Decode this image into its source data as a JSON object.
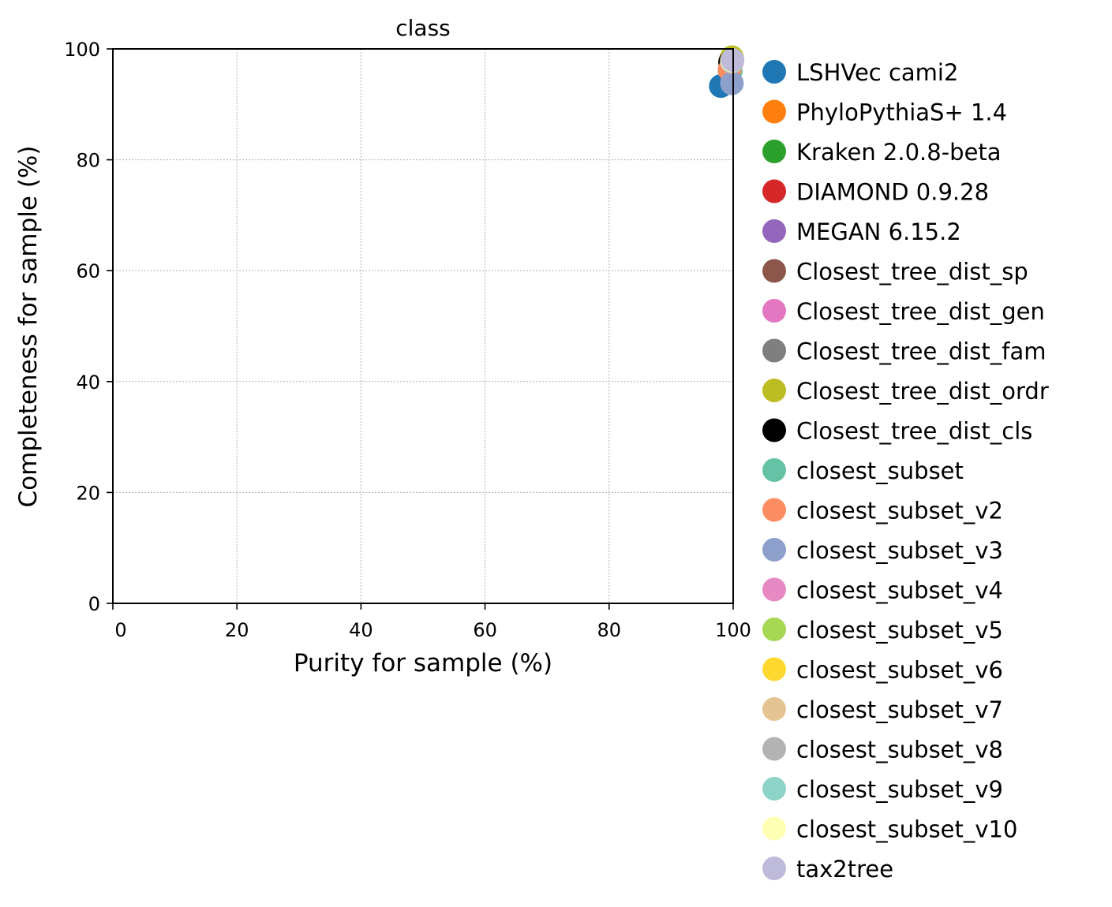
{
  "chart_data": {
    "type": "scatter",
    "title": "class",
    "xlabel": "Purity for sample (%)",
    "ylabel": "Completeness for sample (%)",
    "xlim": [
      0,
      100
    ],
    "ylim": [
      0,
      100
    ],
    "xticks": [
      "0",
      "20",
      "40",
      "60",
      "80",
      "100"
    ],
    "yticks": [
      "0",
      "20",
      "40",
      "60",
      "80",
      "100"
    ],
    "grid": true,
    "legend_position": "outside-right",
    "series": [
      {
        "name": "LSHVec cami2",
        "color": "#1f77b4",
        "x": 98.0,
        "y": 93.3
      },
      {
        "name": "PhyloPythiaS+ 1.4",
        "color": "#ff7f0e",
        "x": 99.6,
        "y": 98.0
      },
      {
        "name": "Kraken 2.0.8-beta",
        "color": "#2ca02c",
        "x": 99.8,
        "y": 98.4
      },
      {
        "name": "DIAMOND 0.9.28",
        "color": "#d62728",
        "x": 99.7,
        "y": 98.0
      },
      {
        "name": "MEGAN 6.15.2",
        "color": "#9467bd",
        "x": 99.8,
        "y": 97.8
      },
      {
        "name": "Closest_tree_dist_sp",
        "color": "#8c564b",
        "x": 99.8,
        "y": 98.2
      },
      {
        "name": "Closest_tree_dist_gen",
        "color": "#e377c2",
        "x": 99.8,
        "y": 98.3
      },
      {
        "name": "Closest_tree_dist_fam",
        "color": "#7f7f7f",
        "x": 99.8,
        "y": 98.4
      },
      {
        "name": "Closest_tree_dist_ordr",
        "color": "#bcbd22",
        "x": 99.8,
        "y": 98.5
      },
      {
        "name": "Closest_tree_dist_cls",
        "color": "#000000",
        "x": 99.5,
        "y": 97.6
      },
      {
        "name": "closest_subset",
        "color": "#66c2a5",
        "x": 99.6,
        "y": 96.0
      },
      {
        "name": "closest_subset_v2",
        "color": "#fc8d62",
        "x": 99.4,
        "y": 96.2
      },
      {
        "name": "closest_subset_v3",
        "color": "#8da0cb",
        "x": 99.8,
        "y": 93.8
      },
      {
        "name": "closest_subset_v4",
        "color": "#e78ac3",
        "x": 99.8,
        "y": 97.6
      },
      {
        "name": "closest_subset_v5",
        "color": "#a6d854",
        "x": 99.8,
        "y": 97.7
      },
      {
        "name": "closest_subset_v6",
        "color": "#ffd92f",
        "x": 99.8,
        "y": 97.8
      },
      {
        "name": "closest_subset_v7",
        "color": "#e5c494",
        "x": 99.8,
        "y": 97.7
      },
      {
        "name": "closest_subset_v8",
        "color": "#b3b3b3",
        "x": 99.8,
        "y": 97.8
      },
      {
        "name": "closest_subset_v9",
        "color": "#8dd3c7",
        "x": 99.8,
        "y": 97.8
      },
      {
        "name": "closest_subset_v10",
        "color": "#ffffb3",
        "x": 99.8,
        "y": 97.9
      },
      {
        "name": "tax2tree",
        "color": "#bebada",
        "x": 99.9,
        "y": 98.0
      }
    ]
  }
}
